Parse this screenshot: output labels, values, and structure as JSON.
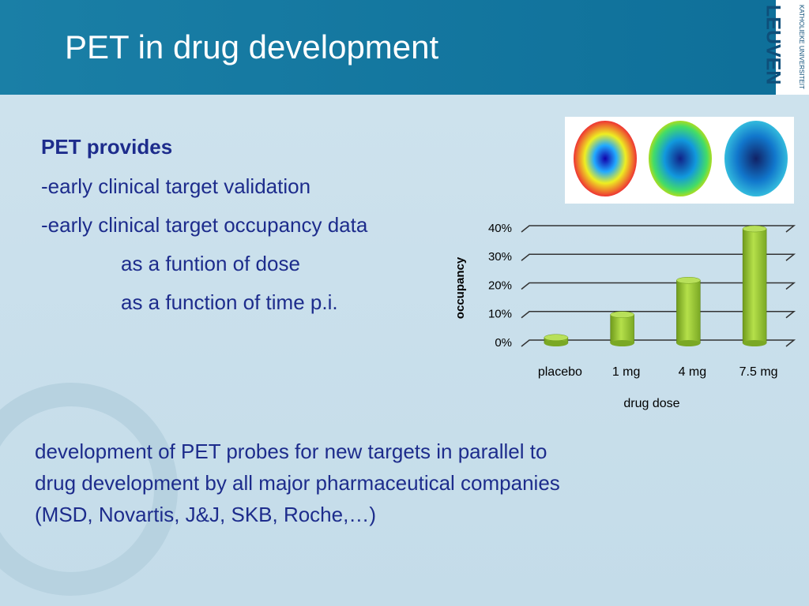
{
  "header": {
    "title": "PET in drug development",
    "logo_top": "KATHOLIEKE UNIVERSITEIT",
    "logo_name": "LEUVEN"
  },
  "body": {
    "heading": "PET provides",
    "lines": [
      "-early clinical target validation",
      "-early clinical target occupancy data"
    ],
    "sub_lines": [
      "as a funtion of dose",
      "as a function of time p.i."
    ],
    "paragraph": [
      "development of PET probes for new targets in parallel to",
      "drug development by all major pharmaceutical companies",
      "(MSD, Novartis, J&J, SKB, Roche,…)"
    ]
  },
  "chart_data": {
    "type": "bar",
    "x_label": "drug dose",
    "y_label": "occupancy",
    "categories": [
      "placebo",
      "1 mg",
      "4 mg",
      "7.5 mg"
    ],
    "values": [
      2,
      10,
      22,
      40
    ],
    "color": "#9acd32",
    "ylim": [
      0,
      40
    ],
    "yticks": [
      {
        "value": 0,
        "label": "0%"
      },
      {
        "value": 10,
        "label": "10%"
      },
      {
        "value": 20,
        "label": "20%"
      },
      {
        "value": 30,
        "label": "30%"
      },
      {
        "value": 40,
        "label": "40%"
      }
    ],
    "grid": true
  }
}
